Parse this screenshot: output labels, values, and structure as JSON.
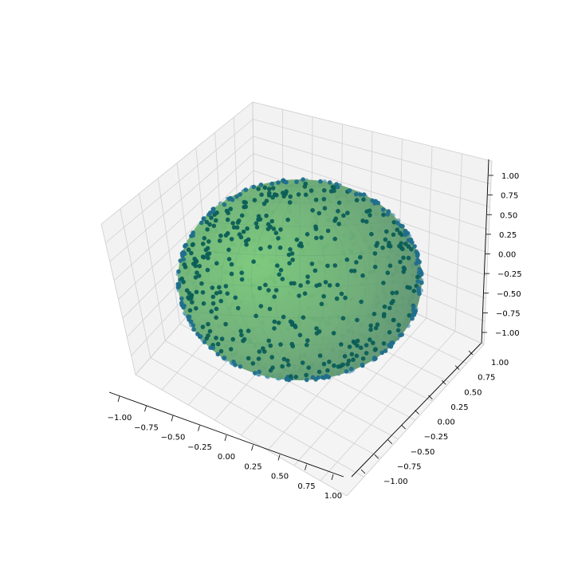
{
  "chart_data": {
    "type": "scatter",
    "projection": "3d",
    "surface": "unit-sphere",
    "surface_color": "#5fb36a",
    "point_color": "#1f77b4",
    "point_count": 1000,
    "grid": true,
    "title": "",
    "xlabel": "",
    "ylabel": "",
    "zlabel": "",
    "xlim": [
      -1.0,
      1.0
    ],
    "ylim": [
      -1.0,
      1.0
    ],
    "zlim": [
      -1.0,
      1.0
    ],
    "x_ticks": [
      "−1.00",
      "−0.75",
      "−0.50",
      "−0.25",
      "0.00",
      "0.25",
      "0.50",
      "0.75",
      "1.00"
    ],
    "y_ticks": [
      "−1.00",
      "−0.75",
      "−0.50",
      "−0.25",
      "0.00",
      "0.25",
      "0.50",
      "0.75",
      "1.00"
    ],
    "z_ticks": [
      "−1.00",
      "−0.75",
      "−0.50",
      "−0.25",
      "0.00",
      "0.25",
      "0.50",
      "0.75",
      "1.00"
    ]
  }
}
